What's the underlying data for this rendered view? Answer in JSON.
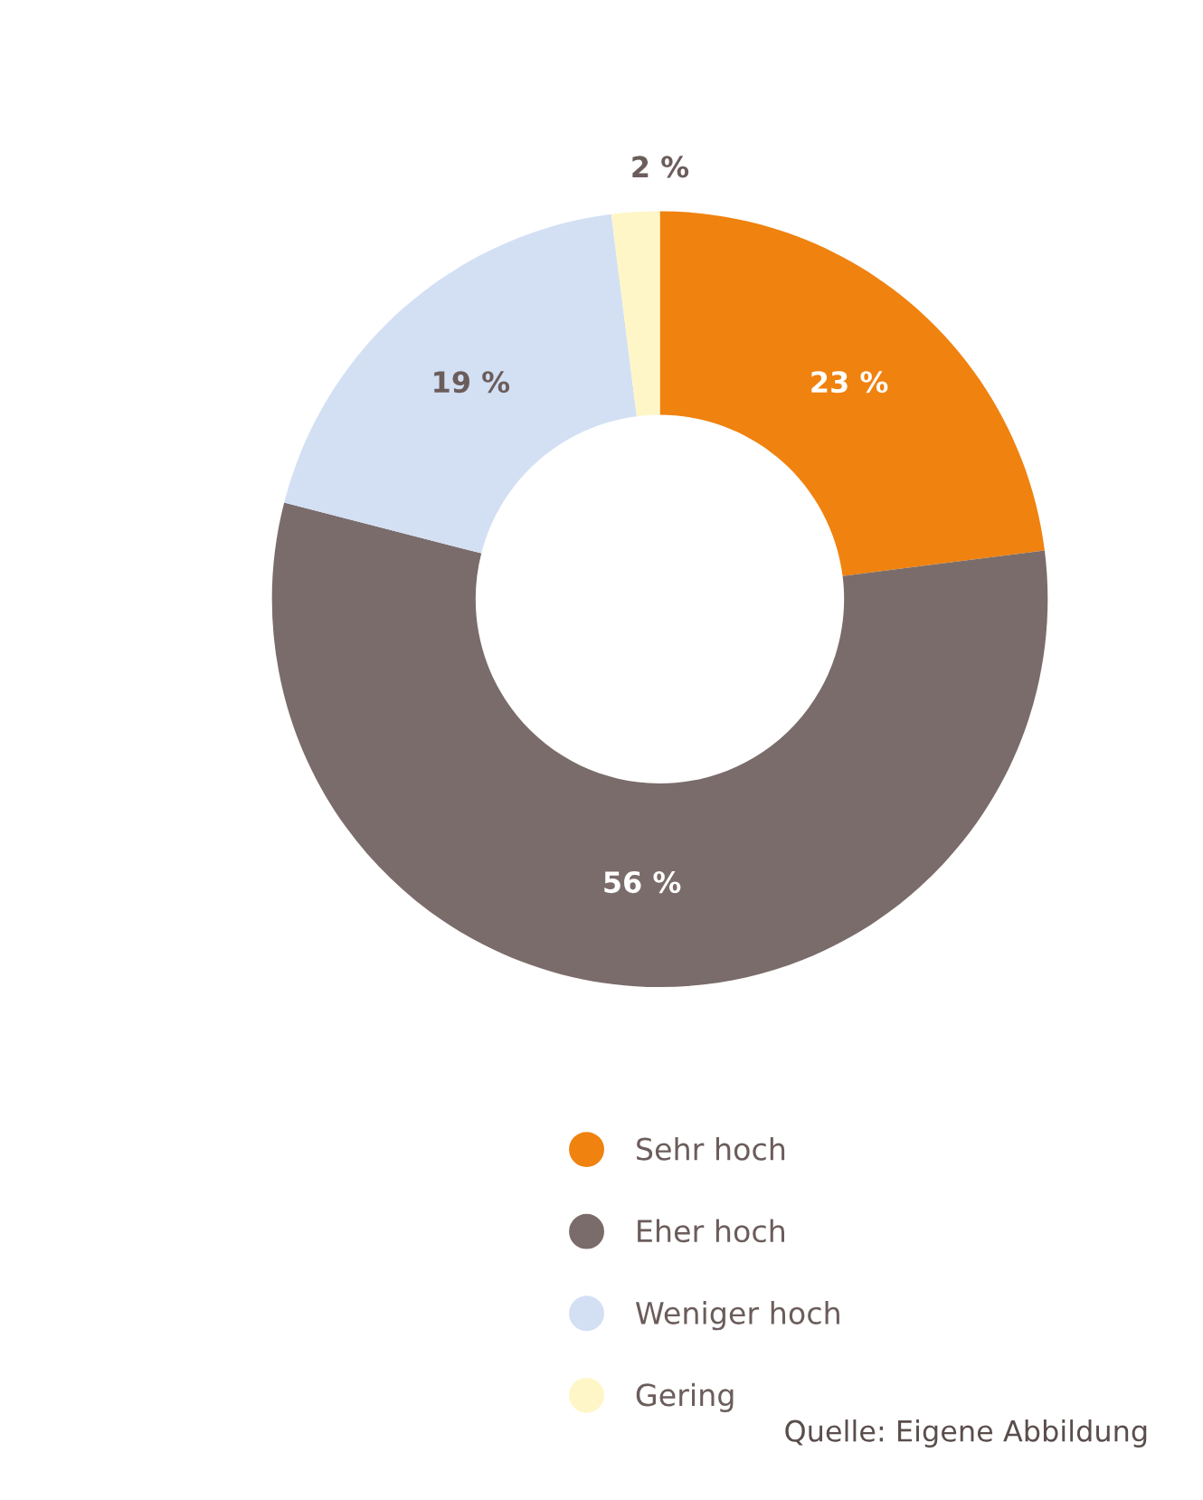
{
  "chart_data": {
    "type": "donut",
    "categories": [
      "Sehr hoch",
      "Eher hoch",
      "Weniger hoch",
      "Gering"
    ],
    "values": [
      23,
      56,
      19,
      2
    ],
    "colors": [
      "#f0820f",
      "#7a6c6a",
      "#d3e0f4",
      "#fff6c8"
    ],
    "value_labels": [
      "23 %",
      "56 %",
      "19 %",
      "2 %"
    ],
    "legend": "bottom",
    "annotations": [
      "Quelle: Eigene Abbildung"
    ]
  }
}
